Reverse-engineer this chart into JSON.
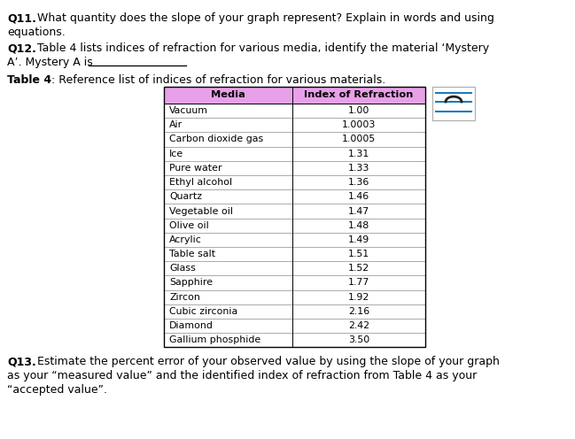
{
  "col_headers": [
    "Media",
    "Index of Refraction"
  ],
  "table_data": [
    [
      "Vacuum",
      "1.00"
    ],
    [
      "Air",
      "1.0003"
    ],
    [
      "Carbon dioxide gas",
      "1.0005"
    ],
    [
      "Ice",
      "1.31"
    ],
    [
      "Pure water",
      "1.33"
    ],
    [
      "Ethyl alcohol",
      "1.36"
    ],
    [
      "Quartz",
      "1.46"
    ],
    [
      "Vegetable oil",
      "1.47"
    ],
    [
      "Olive oil",
      "1.48"
    ],
    [
      "Acrylic",
      "1.49"
    ],
    [
      "Table salt",
      "1.51"
    ],
    [
      "Glass",
      "1.52"
    ],
    [
      "Sapphire",
      "1.77"
    ],
    [
      "Zircon",
      "1.92"
    ],
    [
      "Cubic zirconia",
      "2.16"
    ],
    [
      "Diamond",
      "2.42"
    ],
    [
      "Gallium phosphide",
      "3.50"
    ]
  ],
  "header_bg": "#e8a0e8",
  "bg_color": "#ffffff",
  "font_size_body": 9.0,
  "font_size_table": 8.2,
  "icon_line_color": "#1a7bbf",
  "icon_arch_color": "#222222"
}
